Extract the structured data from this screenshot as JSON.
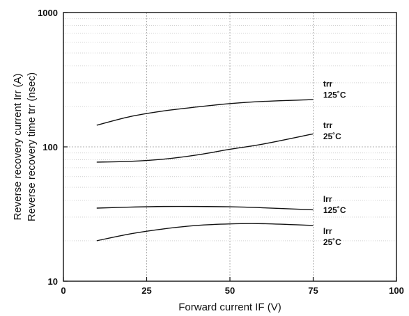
{
  "chart_data": {
    "type": "line",
    "title": "",
    "xlabel": "Forward current    IF (V)",
    "ylabel_lines": [
      "Reverse recovery current    Irr (A)",
      "Reverse recovery time    trr (nsec)"
    ],
    "xlim": [
      0,
      100
    ],
    "ylim": [
      10,
      1000
    ],
    "yscale": "log",
    "grid": true,
    "x_ticks": [
      0,
      25,
      50,
      75,
      100
    ],
    "y_ticks": [
      10,
      100,
      1000
    ],
    "x_tick_labels": [
      "0",
      "25",
      "50",
      "75",
      "100"
    ],
    "y_tick_labels": [
      "10",
      "100",
      "1000"
    ],
    "series": [
      {
        "name": "trr 125°C",
        "label_lines": [
          "trr",
          "125˚C"
        ],
        "label_at": [
          78,
          280
        ],
        "x": [
          10,
          20,
          30,
          40,
          50,
          60,
          75
        ],
        "y": [
          145,
          168,
          185,
          198,
          210,
          218,
          225
        ]
      },
      {
        "name": "trr 25°C",
        "label_lines": [
          "trr",
          "25˚C"
        ],
        "label_at": [
          78,
          138
        ],
        "x": [
          10,
          20,
          30,
          40,
          50,
          60,
          75
        ],
        "y": [
          77,
          78,
          81,
          87,
          96,
          105,
          125
        ]
      },
      {
        "name": "Irr 125°C",
        "label_lines": [
          "Irr",
          "125˚C"
        ],
        "label_at": [
          78,
          39
        ],
        "x": [
          10,
          20,
          30,
          40,
          50,
          60,
          75
        ],
        "y": [
          35,
          35.6,
          36,
          36,
          35.8,
          35.2,
          34
        ]
      },
      {
        "name": "Irr 25°C",
        "label_lines": [
          "Irr",
          "25˚C"
        ],
        "label_at": [
          78,
          22.5
        ],
        "x": [
          10,
          20,
          30,
          40,
          50,
          60,
          75
        ],
        "y": [
          20,
          22.5,
          24.5,
          26,
          26.7,
          26.8,
          26
        ]
      }
    ]
  }
}
